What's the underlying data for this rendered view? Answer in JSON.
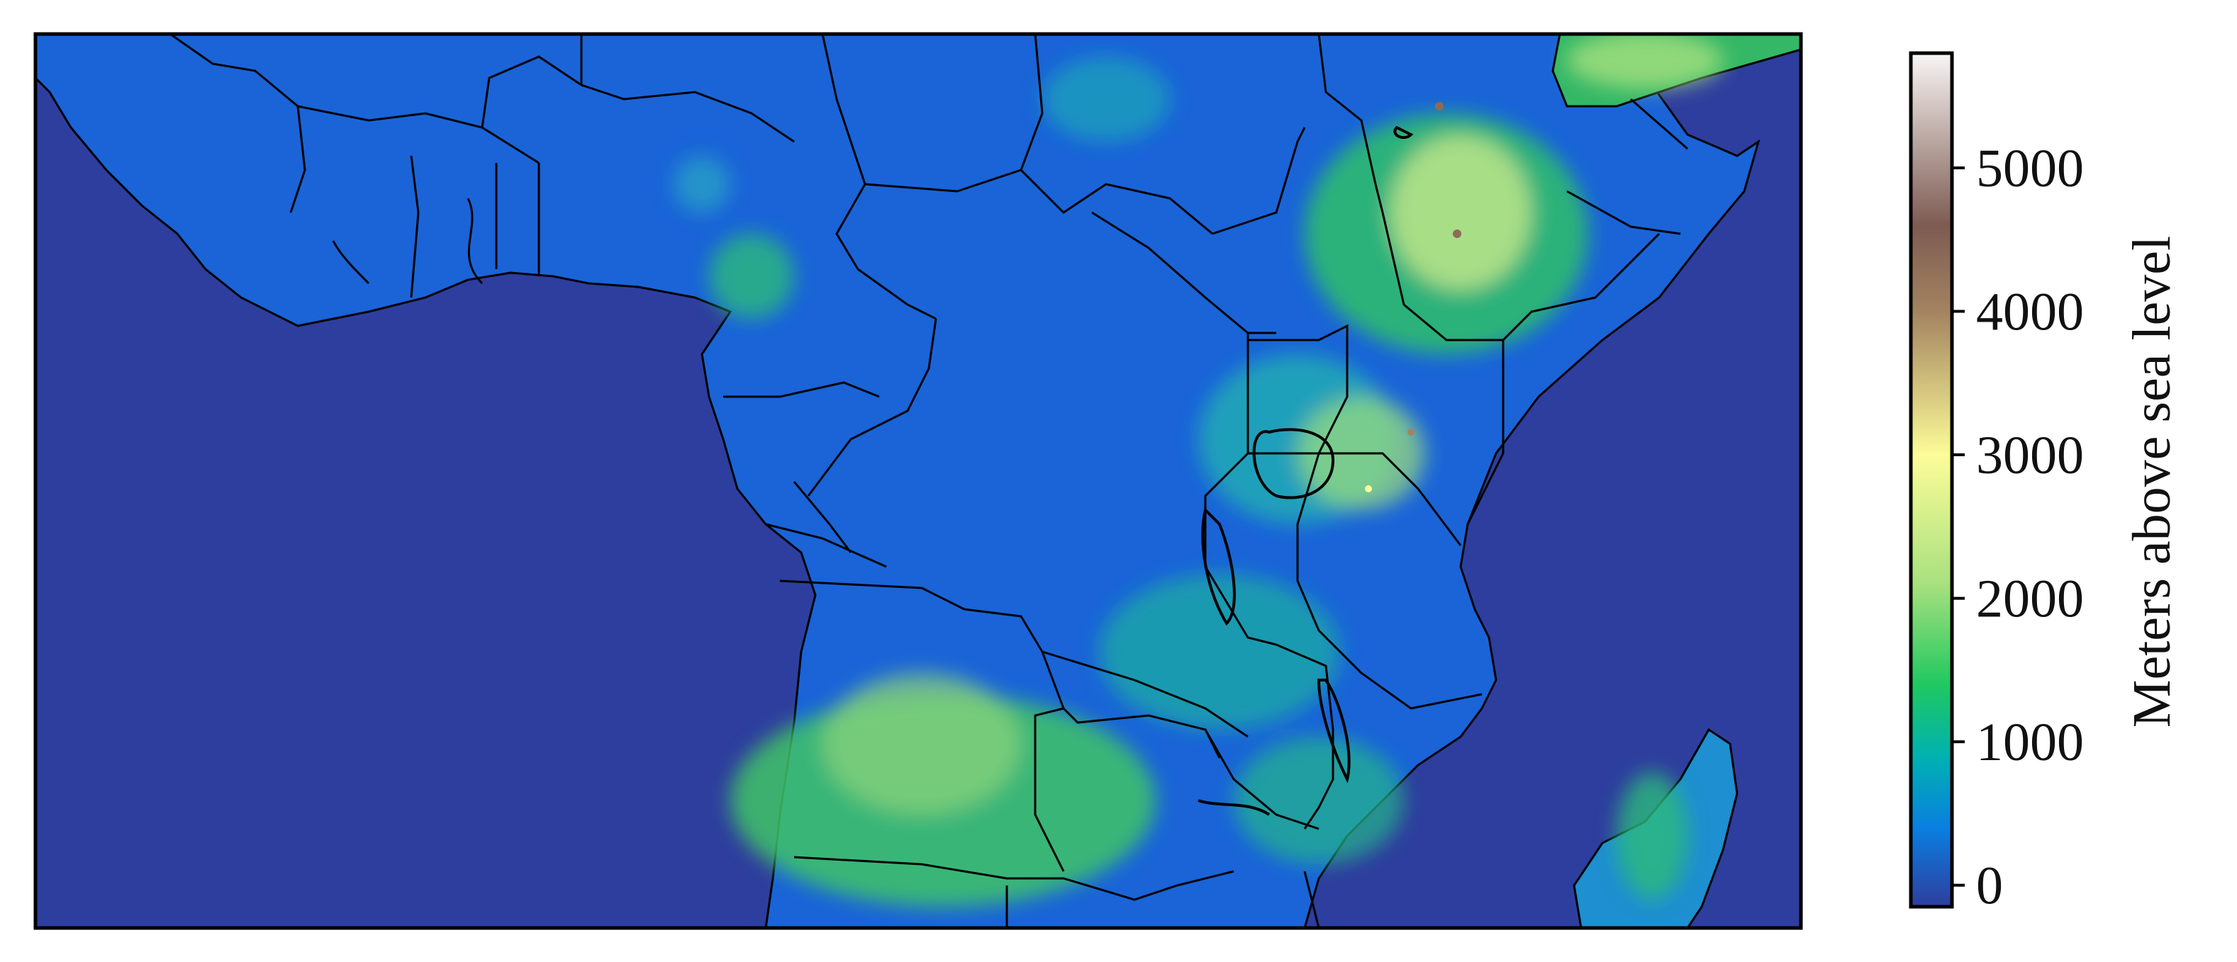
{
  "colorbar": {
    "label": "Meters above sea level",
    "ticks": [
      0,
      1000,
      2000,
      3000,
      4000,
      5000
    ],
    "tick_labels": [
      "0",
      "1000",
      "2000",
      "3000",
      "4000",
      "5000"
    ],
    "range": [
      -150,
      5800
    ],
    "colormap": "terrain",
    "stops": [
      {
        "value": -150,
        "color": "#2e3e9e"
      },
      {
        "value": 400,
        "color": "#0a7fe0"
      },
      {
        "value": 900,
        "color": "#00b2b0"
      },
      {
        "value": 1400,
        "color": "#20c860"
      },
      {
        "value": 2100,
        "color": "#a8e17e"
      },
      {
        "value": 3000,
        "color": "#fcfc98"
      },
      {
        "value": 4000,
        "color": "#a38360"
      },
      {
        "value": 4600,
        "color": "#7d5b52"
      },
      {
        "value": 5800,
        "color": "#f8f5f4"
      }
    ]
  },
  "colors": {
    "ocean": "#2e3e9e",
    "lowland": "#1e62d6",
    "frame": "#000000"
  }
}
